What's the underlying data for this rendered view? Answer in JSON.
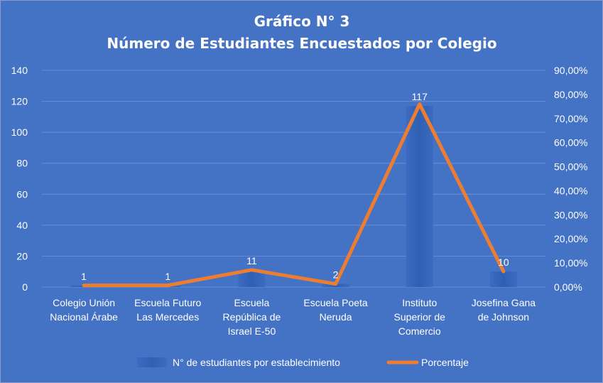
{
  "chart_data": {
    "type": "bar",
    "title": "Gráfico N° 3",
    "subtitle": "Número de Estudiantes Encuestados por Colegio",
    "categories": [
      [
        "Colegio Unión",
        "Nacional Árabe"
      ],
      [
        "Escuela Futuro",
        "Las Mercedes"
      ],
      [
        "Escuela",
        "República de",
        "Israel E-50"
      ],
      [
        "Escuela Poeta",
        "Neruda"
      ],
      [
        "Instituto",
        "Superior de",
        "Comercio"
      ],
      [
        "Josefina Gana",
        "de Johnson"
      ]
    ],
    "series": [
      {
        "name": "N° de estudiantes por establecimiento",
        "type": "bar",
        "axis": "left",
        "values": [
          1,
          1,
          11,
          2,
          117,
          10
        ],
        "data_labels": [
          "1",
          "1",
          "11",
          "2",
          "117",
          "10"
        ]
      },
      {
        "name": "Porcentaje",
        "type": "line",
        "axis": "right",
        "values": [
          0.7,
          0.7,
          7.14,
          1.3,
          75.97,
          6.49
        ]
      }
    ],
    "y_left": {
      "min": 0,
      "max": 140,
      "ticks": [
        "0",
        "20",
        "40",
        "60",
        "80",
        "100",
        "120",
        "140"
      ]
    },
    "y_right": {
      "min": 0,
      "max": 90,
      "ticks": [
        "0,00%",
        "10,00%",
        "20,00%",
        "30,00%",
        "40,00%",
        "50,00%",
        "60,00%",
        "70,00%",
        "80,00%",
        "90,00%"
      ]
    },
    "grid": true,
    "legend": "bottom",
    "colors": {
      "background": "#4472c4",
      "bar": "#3465b8",
      "line": "#ed7d31",
      "grid": "#6a8fd2",
      "text": "#ffffff"
    }
  }
}
